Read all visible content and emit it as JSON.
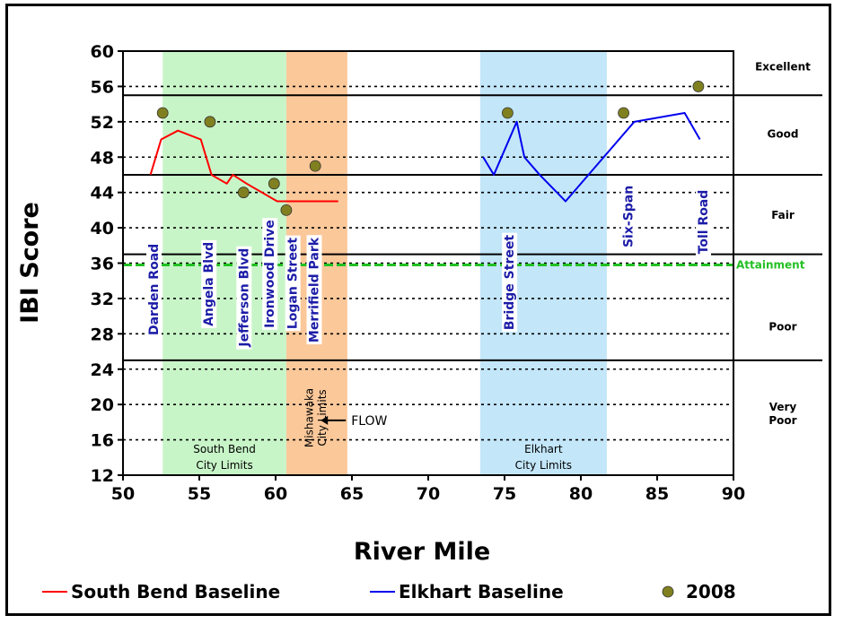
{
  "colors": {
    "south_bend": "#ff0000",
    "elkhart": "#0000ee",
    "points_2008": "#808020",
    "attainment": "#22c022",
    "south_bend_region": "#c8f5c8",
    "mishawaka_region": "#fbc89a",
    "elkhart_region": "#c3e6f9"
  },
  "chart_data": {
    "type": "line",
    "xlabel": "River Mile",
    "ylabel": "IBI Score",
    "xlim": [
      50,
      90
    ],
    "ylim": [
      12,
      60
    ],
    "x_ticks": [
      50,
      55,
      60,
      65,
      70,
      75,
      80,
      85,
      90
    ],
    "y_ticks": [
      12,
      16,
      20,
      24,
      28,
      32,
      36,
      40,
      44,
      48,
      52,
      56,
      60
    ],
    "grid": "dotted horizontal",
    "series": [
      {
        "name": "South Bend Baseline",
        "kind": "line",
        "color": "#ff0000",
        "x": [
          51.8,
          52.5,
          53.6,
          55.1,
          55.8,
          56.8,
          57.2,
          58.1,
          59.1,
          60.1,
          61.1,
          62.1,
          63.1,
          64.1
        ],
        "y": [
          46,
          50,
          51,
          50,
          46,
          45,
          46,
          45,
          44,
          43,
          43,
          43,
          43,
          43
        ]
      },
      {
        "name": "Elkhart Baseline",
        "kind": "line",
        "color": "#0000ee",
        "x": [
          73.6,
          74.3,
          74.8,
          75.8,
          76.3,
          77.3,
          79.0,
          81.5,
          83.5,
          86.8,
          87.8
        ],
        "y": [
          48,
          46,
          48,
          52,
          48,
          46,
          43,
          48,
          52,
          53,
          50
        ]
      },
      {
        "name": "2008",
        "kind": "scatter",
        "color": "#808020",
        "x": [
          52.6,
          55.7,
          57.9,
          59.9,
          60.7,
          62.6,
          75.2,
          82.8,
          87.7
        ],
        "y": [
          53,
          52,
          44,
          45,
          42,
          47,
          53,
          53,
          56
        ]
      }
    ],
    "thresholds": [
      {
        "y": 55,
        "style": "solid"
      },
      {
        "y": 46,
        "style": "solid"
      },
      {
        "y": 37,
        "style": "solid"
      },
      {
        "y": 25,
        "style": "solid"
      },
      {
        "y": 35.8,
        "style": "attainment",
        "label": "Attainment"
      }
    ],
    "categories": [
      {
        "label": [
          "Excellent"
        ],
        "y": 57.8
      },
      {
        "label": [
          "Good"
        ],
        "y": 50.2
      },
      {
        "label": [
          "Fair"
        ],
        "y": 41.0
      },
      {
        "label": [
          "Poor"
        ],
        "y": 28.4
      },
      {
        "label": [
          "Very",
          "Poor"
        ],
        "y": 19.3
      }
    ],
    "regions": [
      {
        "x0": 52.6,
        "x1": 60.7,
        "label": [
          "South Bend",
          "City Limits"
        ],
        "color_key": "south_bend_region"
      },
      {
        "x0": 60.7,
        "x1": 64.7,
        "label": [
          "Mishawaka",
          "City Limits"
        ],
        "vertical": true,
        "color_key": "mishawaka_region"
      },
      {
        "x0": 73.4,
        "x1": 81.7,
        "label": [
          "Elkhart",
          "City Limits"
        ],
        "color_key": "elkhart_region"
      }
    ],
    "road_labels": [
      {
        "text": "Darden Road",
        "x": 52.0,
        "y_top": 38.2
      },
      {
        "text": "Angela Blvd",
        "x": 55.6,
        "y_top": 38.4
      },
      {
        "text": "Jefferson Blvd",
        "x": 57.9,
        "y_top": 37.7
      },
      {
        "text": "Ironwood Drive",
        "x": 59.6,
        "y_top": 40.9
      },
      {
        "text": "Logan Street",
        "x": 61.1,
        "y_top": 38.9
      },
      {
        "text": "Merrifield Park",
        "x": 62.5,
        "y_top": 38.9
      },
      {
        "text": "Bridge Street",
        "x": 75.3,
        "y_top": 39.2
      },
      {
        "text": "Six-Span",
        "x": 83.1,
        "y_top": 44.8
      },
      {
        "text": "Toll Road",
        "x": 88.0,
        "y_top": 44.3
      }
    ],
    "annotation": {
      "text": "FLOW",
      "arrow": "left",
      "x": 66.6,
      "y": 18.2
    }
  }
}
